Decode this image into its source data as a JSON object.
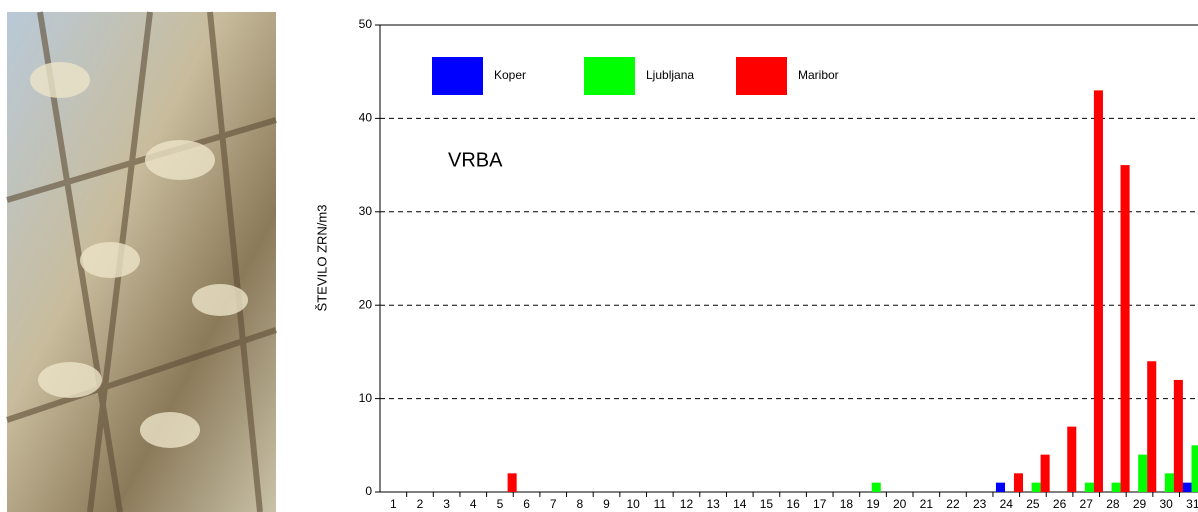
{
  "chart_data": {
    "type": "bar",
    "title": "VRBA",
    "ylabel": "ŠTEVILO ZRN/m3",
    "categories": [
      "1",
      "2",
      "3",
      "4",
      "5",
      "6",
      "7",
      "8",
      "9",
      "10",
      "11",
      "12",
      "13",
      "14",
      "15",
      "16",
      "17",
      "18",
      "19",
      "20",
      "21",
      "22",
      "23",
      "24",
      "25",
      "26",
      "27",
      "28",
      "29",
      "30",
      "31"
    ],
    "series": [
      {
        "name": "Koper",
        "color": "#0000ff",
        "values": [
          0,
          0,
          0,
          0,
          0,
          0,
          0,
          0,
          0,
          0,
          0,
          0,
          0,
          0,
          0,
          0,
          0,
          0,
          0,
          0,
          0,
          0,
          0,
          1,
          0,
          0,
          0,
          0,
          0,
          0,
          1
        ]
      },
      {
        "name": "Ljubljana",
        "color": "#00ff00",
        "values": [
          0,
          0,
          0,
          0,
          0,
          0,
          0,
          0,
          0,
          0,
          0,
          0,
          0,
          0,
          0,
          0,
          0,
          0,
          1,
          0,
          0,
          0,
          0,
          0,
          1,
          0,
          1,
          1,
          4,
          2,
          5
        ]
      },
      {
        "name": "Maribor",
        "color": "#ff0000",
        "values": [
          0,
          0,
          0,
          0,
          2,
          0,
          0,
          0,
          0,
          0,
          0,
          0,
          0,
          0,
          0,
          0,
          0,
          0,
          0,
          0,
          0,
          0,
          0,
          2,
          4,
          7,
          43,
          35,
          14,
          12,
          0
        ]
      }
    ],
    "ylim": [
      0,
      50
    ],
    "yticks": [
      0,
      10,
      20,
      30,
      40,
      50
    ],
    "grid": true
  }
}
